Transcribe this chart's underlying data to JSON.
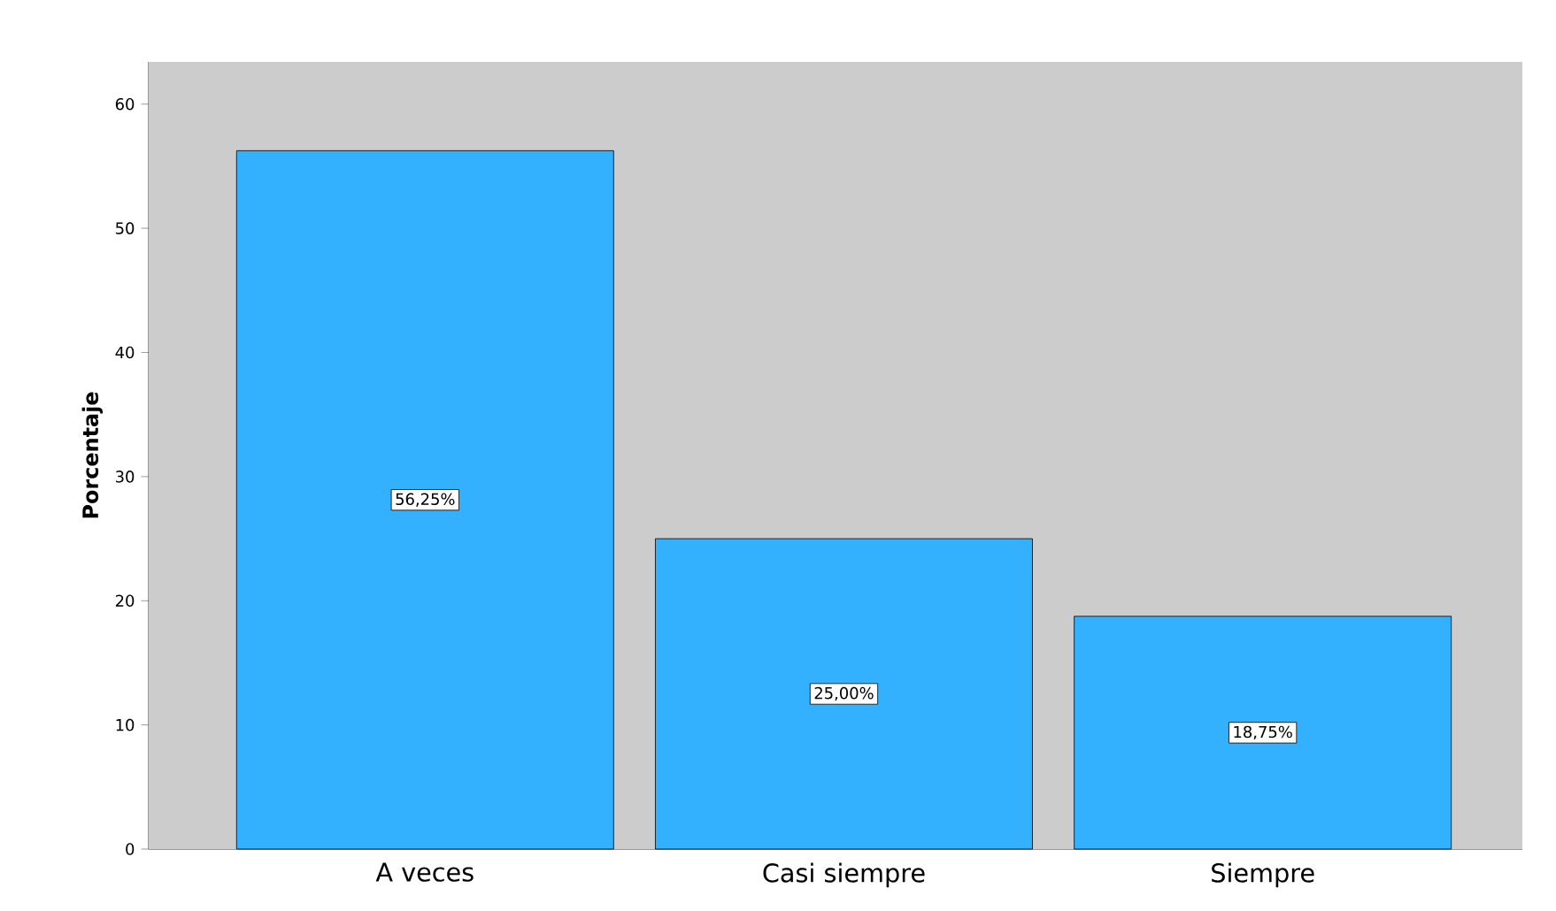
{
  "chart_data": {
    "type": "bar",
    "ylabel": "Porcentaje",
    "categories": [
      "A veces",
      "Casi siempre",
      "Siempre"
    ],
    "values": [
      56.25,
      25.0,
      18.75
    ],
    "value_labels": [
      "56,25%",
      "25,00%",
      "18,75%"
    ],
    "color": "#33b1ff",
    "ylim": [
      0,
      63.4
    ],
    "yticks": [
      0,
      10,
      20,
      30,
      40,
      50,
      60
    ]
  }
}
